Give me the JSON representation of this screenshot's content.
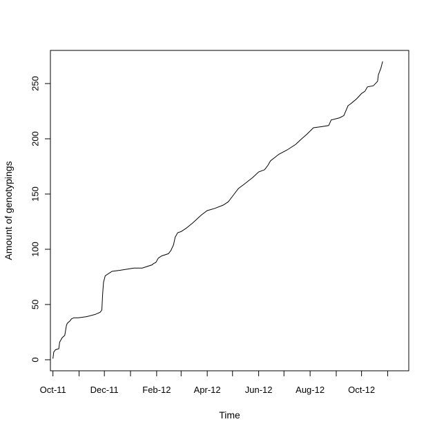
{
  "chart_data": {
    "type": "line",
    "title": "",
    "xlabel": "Time",
    "ylabel": "Amount of genotypings",
    "grid": false,
    "x_range": [
      "2011-09-28",
      "2012-11-26"
    ],
    "ylim": [
      -10,
      280
    ],
    "x_ticks": [
      {
        "date": "2011-10-01",
        "label": "Oct-11"
      },
      {
        "date": "2011-11-01",
        "label": ""
      },
      {
        "date": "2011-12-01",
        "label": "Dec-11"
      },
      {
        "date": "2012-01-01",
        "label": ""
      },
      {
        "date": "2012-02-01",
        "label": "Feb-12"
      },
      {
        "date": "2012-03-01",
        "label": ""
      },
      {
        "date": "2012-04-01",
        "label": "Apr-12"
      },
      {
        "date": "2012-05-01",
        "label": ""
      },
      {
        "date": "2012-06-01",
        "label": "Jun-12"
      },
      {
        "date": "2012-07-01",
        "label": ""
      },
      {
        "date": "2012-08-01",
        "label": "Aug-12"
      },
      {
        "date": "2012-09-01",
        "label": ""
      },
      {
        "date": "2012-10-01",
        "label": "Oct-12"
      },
      {
        "date": "2012-11-01",
        "label": ""
      }
    ],
    "y_ticks": [
      0,
      50,
      100,
      150,
      200,
      250
    ],
    "series": [
      {
        "color": "#000000",
        "x": [
          "2011-10-01",
          "2011-10-02",
          "2011-10-04",
          "2011-10-08",
          "2011-10-09",
          "2011-10-12",
          "2011-10-15",
          "2011-10-17",
          "2011-10-18",
          "2011-10-21",
          "2011-10-23",
          "2011-10-26",
          "2011-10-31",
          "2011-11-10",
          "2011-11-20",
          "2011-11-26",
          "2011-11-28",
          "2011-11-29",
          "2011-11-30",
          "2011-12-02",
          "2011-12-04",
          "2011-12-10",
          "2011-12-20",
          "2012-01-05",
          "2012-01-15",
          "2012-01-27",
          "2012-01-28",
          "2012-01-31",
          "2012-02-03",
          "2012-02-05",
          "2012-02-07",
          "2012-02-15",
          "2012-02-18",
          "2012-02-21",
          "2012-02-23",
          "2012-02-26",
          "2012-03-01",
          "2012-03-07",
          "2012-03-15",
          "2012-03-25",
          "2012-04-01",
          "2012-04-10",
          "2012-04-20",
          "2012-04-26",
          "2012-04-28",
          "2012-05-08",
          "2012-05-15",
          "2012-05-25",
          "2012-06-01",
          "2012-06-08",
          "2012-06-12",
          "2012-06-15",
          "2012-06-25",
          "2012-07-05",
          "2012-07-15",
          "2012-07-22",
          "2012-07-28",
          "2012-08-05",
          "2012-08-15",
          "2012-08-23",
          "2012-08-26",
          "2012-09-05",
          "2012-09-10",
          "2012-09-15",
          "2012-09-17",
          "2012-09-25",
          "2012-10-01",
          "2012-10-05",
          "2012-10-08",
          "2012-10-15",
          "2012-10-20",
          "2012-10-21",
          "2012-10-24",
          "2012-10-26"
        ],
        "y": [
          1,
          7,
          9,
          10,
          16,
          20,
          22,
          31,
          33,
          35,
          37,
          38,
          38,
          39,
          41,
          43,
          45,
          60,
          70,
          76,
          77,
          80,
          81,
          83,
          83,
          86,
          87,
          88,
          92,
          93,
          94,
          96,
          99,
          104,
          111,
          115,
          116,
          119,
          124,
          131,
          135,
          137,
          140,
          143,
          145,
          155,
          159,
          165,
          170,
          172,
          176,
          180,
          186,
          190,
          195,
          200,
          204,
          210,
          211,
          212,
          217,
          219,
          221,
          230,
          231,
          236,
          241,
          243,
          247,
          248,
          252,
          258,
          264,
          270
        ]
      }
    ]
  }
}
